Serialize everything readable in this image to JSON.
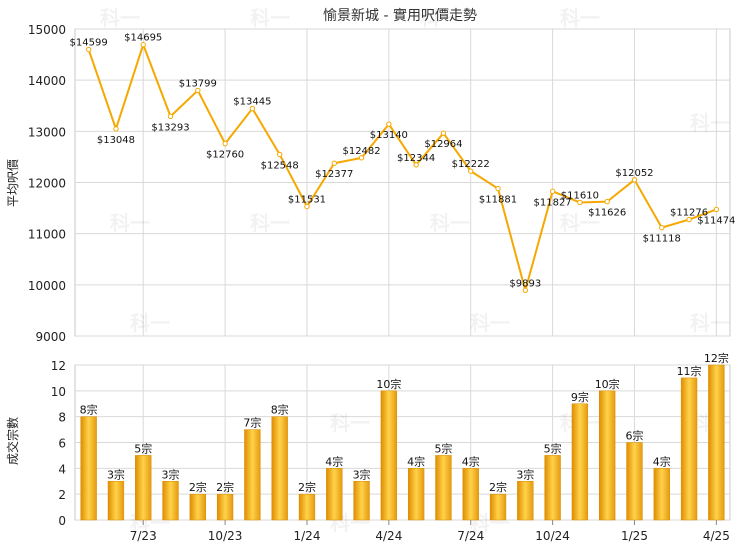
{
  "chart_data": [
    {
      "type": "line",
      "title": "愉景新城 - 實用呎價走勢",
      "ylabel": "平均呎價",
      "ylim": [
        9000,
        15000
      ],
      "yticks": [
        9000,
        10000,
        11000,
        12000,
        13000,
        14000,
        15000
      ],
      "grid": true,
      "color": "#f5a800",
      "values": [
        14599,
        13048,
        14695,
        13293,
        13799,
        12760,
        13445,
        12548,
        11531,
        12377,
        12482,
        13140,
        12344,
        12964,
        12222,
        11881,
        9893,
        11827,
        11610,
        11626,
        12052,
        11118,
        11276,
        11474
      ],
      "data_labels": [
        "$14599",
        "$13048",
        "$14695",
        "$13293",
        "$13799",
        "$12760",
        "$13445",
        "$12548",
        "$11531",
        "$12377",
        "$12482",
        "$13140",
        "$12344",
        "$12964",
        "$12222",
        "$11881",
        "$9893",
        "$11827",
        "$11610",
        "$11626",
        "$12052",
        "$11118",
        "$11276",
        "$11474"
      ]
    },
    {
      "type": "bar",
      "ylabel": "成交宗數",
      "ylim": [
        0,
        12
      ],
      "yticks": [
        0,
        2,
        4,
        6,
        8,
        10,
        12
      ],
      "grid": true,
      "color": "#f2a81d",
      "values": [
        8,
        3,
        5,
        3,
        2,
        2,
        7,
        8,
        2,
        4,
        3,
        10,
        4,
        5,
        4,
        2,
        3,
        5,
        9,
        10,
        6,
        4,
        11,
        12
      ],
      "data_labels": [
        "8宗",
        "3宗",
        "5宗",
        "3宗",
        "2宗",
        "2宗",
        "7宗",
        "8宗",
        "2宗",
        "4宗",
        "3宗",
        "10宗",
        "4宗",
        "5宗",
        "4宗",
        "2宗",
        "3宗",
        "5宗",
        "9宗",
        "10宗",
        "6宗",
        "4宗",
        "11宗",
        "12宗"
      ]
    }
  ],
  "x_axis": {
    "tick_labels": [
      "7/23",
      "10/23",
      "1/24",
      "4/24",
      "7/24",
      "10/24",
      "1/25",
      "4/25"
    ],
    "tick_month_index": [
      2,
      5,
      8,
      11,
      14,
      17,
      20,
      23
    ]
  },
  "watermark": "科一"
}
